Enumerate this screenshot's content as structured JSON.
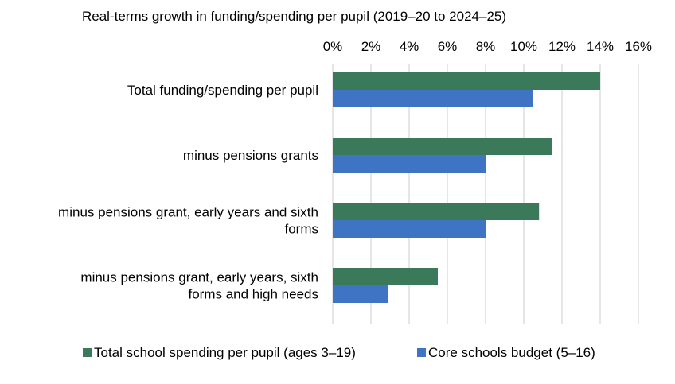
{
  "chart_data": {
    "type": "bar",
    "orientation": "horizontal",
    "title": "Real-terms growth in funding/spending per pupil (2019–20 to  2024–25)",
    "categories": [
      [
        "Total funding/spending per pupil"
      ],
      [
        "minus pensions grants"
      ],
      [
        "minus pensions grant, early years and sixth",
        "forms"
      ],
      [
        "minus pensions grant, early years, sixth",
        "forms and high needs"
      ]
    ],
    "series": [
      {
        "name": "Total school spending per pupil (ages 3–19)",
        "color": "#3a7a5a",
        "values": [
          14.0,
          11.5,
          10.8,
          5.5
        ]
      },
      {
        "name": "Core schools budget (5–16)",
        "color": "#3f74c4",
        "values": [
          10.5,
          8.0,
          8.0,
          2.9
        ]
      }
    ],
    "xlim": [
      0,
      16
    ],
    "x_ticks": [
      0,
      2,
      4,
      6,
      8,
      10,
      12,
      14,
      16
    ],
    "tick_suffix": "%",
    "axis_position": "top",
    "grid": true,
    "grid_color": "#d9d9d9",
    "legend_position": "bottom"
  }
}
